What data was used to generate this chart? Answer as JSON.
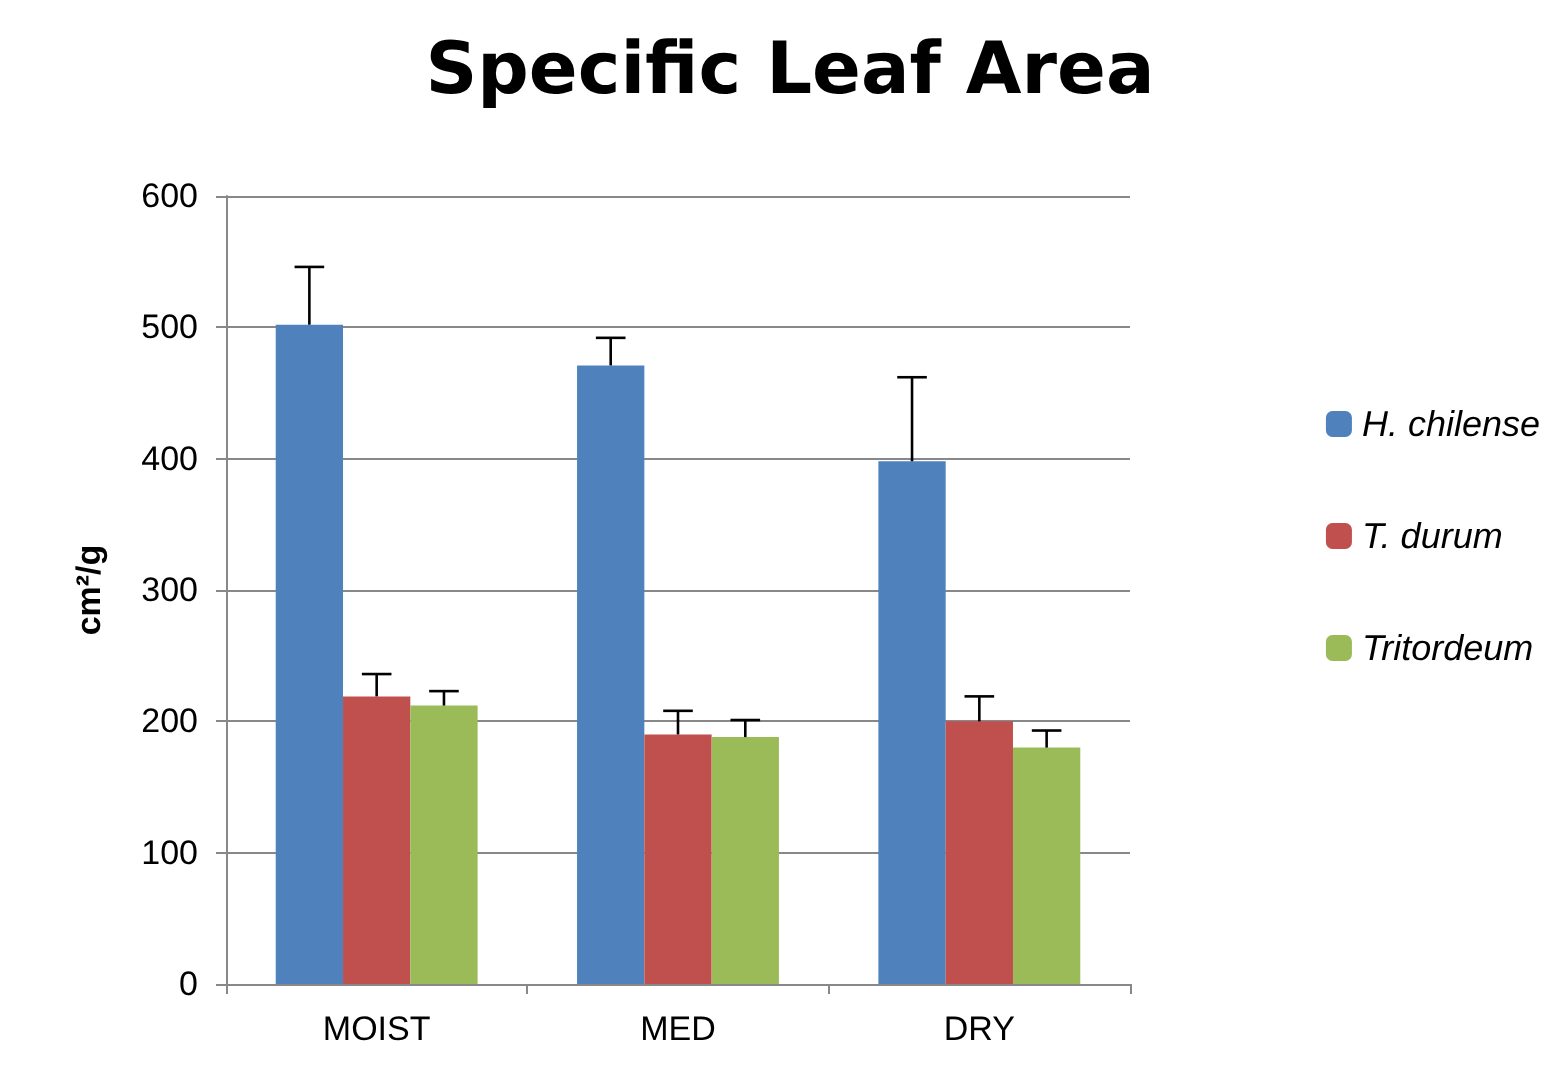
{
  "chart_data": {
    "type": "bar",
    "title": "Specific Leaf Area",
    "ylabel": "cm²/g",
    "categories": [
      "MOIST",
      "MED",
      "DRY"
    ],
    "series": [
      {
        "name": "H. chilense",
        "color": "#4f81bd",
        "values": [
          502,
          471,
          398
        ],
        "errors": [
          [
            502,
            546
          ],
          [
            471,
            492
          ],
          [
            398,
            462
          ]
        ]
      },
      {
        "name": "T. durum",
        "color": "#c0504d",
        "values": [
          219,
          190,
          200
        ],
        "errors": [
          [
            219,
            236
          ],
          [
            190,
            208
          ],
          [
            200,
            219
          ]
        ]
      },
      {
        "name": "Tritordeum",
        "color": "#9bbb59",
        "values": [
          212,
          188,
          180
        ],
        "errors": [
          [
            212,
            223
          ],
          [
            188,
            201
          ],
          [
            180,
            193
          ]
        ]
      }
    ],
    "ylim": [
      0,
      600
    ],
    "yticks": [
      0,
      100,
      200,
      300,
      400,
      500,
      600
    ],
    "grid": "y",
    "legend": "right"
  }
}
